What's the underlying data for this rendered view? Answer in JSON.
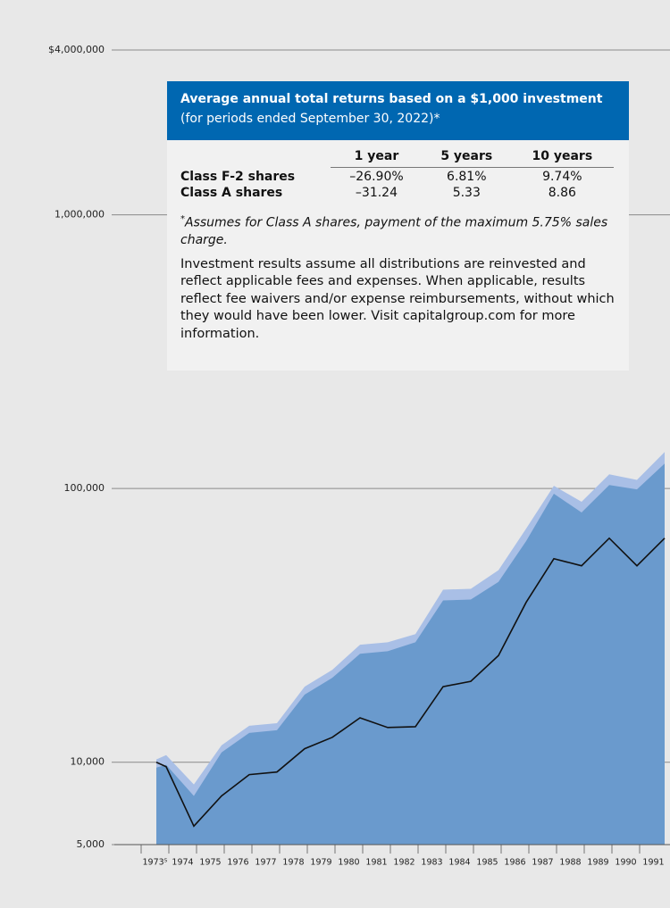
{
  "chart_data": {
    "type": "area",
    "log_scale": true,
    "grid": true,
    "categories": [
      null,
      "1973⁵",
      "1974",
      "1975",
      "1976",
      "1977",
      "1978",
      "1979",
      "1980",
      "1981",
      "1982",
      "1983",
      "1984",
      "1985",
      "1986",
      "1987",
      "1988",
      "1989",
      "1990",
      "1991"
    ],
    "series": [
      {
        "type": "area",
        "color": "#a9bfe6",
        "values": [
          10230,
          10620,
          8290,
          11530,
          13590,
          13890,
          18880,
          21760,
          26870,
          27420,
          29370,
          42700,
          43000,
          50300,
          71400,
          102300,
          89400,
          112700,
          107500,
          135900
        ]
      },
      {
        "type": "area",
        "color": "#6a9acd",
        "values": [
          9560,
          9780,
          7530,
          10860,
          12800,
          13090,
          17660,
          20340,
          24900,
          25450,
          27420,
          39000,
          39300,
          45600,
          64300,
          95700,
          81700,
          103000,
          99300,
          123300
        ]
      },
      {
        "type": "line",
        "color": "#111111",
        "values": [
          10000,
          9630,
          5840,
          7530,
          9010,
          9210,
          11200,
          12330,
          14530,
          13390,
          13480,
          18880,
          19750,
          24530,
          38400,
          55400,
          52200,
          65800,
          52200,
          65800
        ]
      }
    ],
    "ylim": [
      5000,
      4000000
    ],
    "yticks": [
      {
        "value": 5000,
        "label": "5,000"
      },
      {
        "value": 10000,
        "label": "10,000"
      },
      {
        "value": 100000,
        "label": "100,000"
      },
      {
        "value": 1000000,
        "label": "1,000,000"
      },
      {
        "value": 4000000,
        "label": "$4,000,000"
      }
    ]
  },
  "table": {
    "title": "Average annual total returns based on a $1,000 investment",
    "subtitle": "(for periods ended September 30, 2022)*",
    "columns": [
      "1 year",
      "5 years",
      "10 years"
    ],
    "rows": [
      [
        "Class F-2 shares",
        "–26.90%",
        "6.81%",
        "9.74%"
      ],
      [
        "Class A shares",
        "–31.24",
        "5.33",
        "8.86"
      ]
    ],
    "footnote_marker": "*",
    "footnote": "Assumes for Class A shares, payment of the maximum 5.75% sales charge.",
    "note": "Investment results assume all distributions are reinvested and reflect applicable fees and expenses. When applicable, results reflect fee waivers and/or expense reimbursements, without which they would have been lower. Visit capitalgroup.com for more information."
  }
}
